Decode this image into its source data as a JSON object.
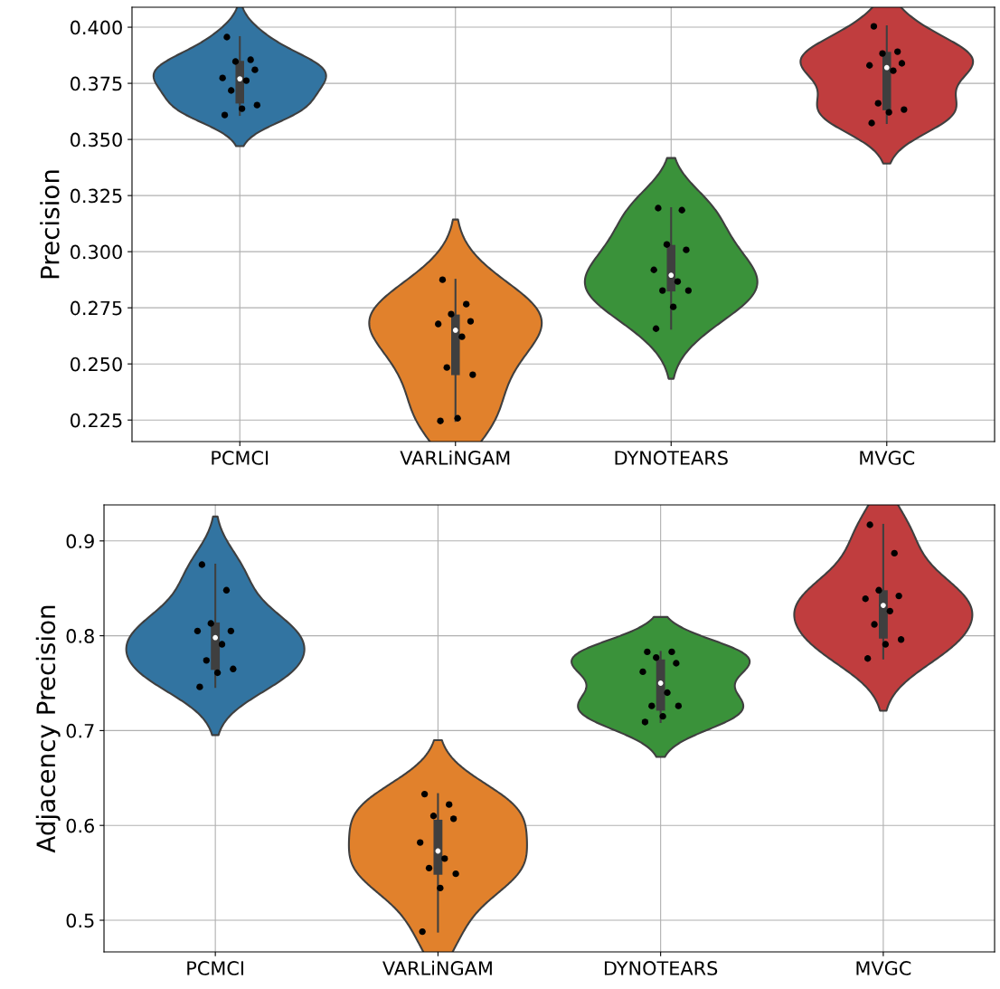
{
  "chart_data": [
    {
      "type": "box",
      "ylabel": "Precision",
      "categories": [
        "PCMCI",
        "VARLiNGAM",
        "DYNOTEARS",
        "MVGC"
      ],
      "colors": [
        "#3274a1",
        "#e1812c",
        "#3a923a",
        "#c03d3e"
      ],
      "ylim": [
        0.2154,
        0.4089
      ],
      "yticks": [
        {
          "value": 0.225,
          "label": "0.225"
        },
        {
          "value": 0.25,
          "label": "0.250"
        },
        {
          "value": 0.275,
          "label": "0.275"
        },
        {
          "value": 0.3,
          "label": "0.300"
        },
        {
          "value": 0.325,
          "label": "0.325"
        },
        {
          "value": 0.35,
          "label": "0.350"
        },
        {
          "value": 0.375,
          "label": "0.375"
        },
        {
          "value": 0.4,
          "label": "0.400"
        }
      ],
      "grid": true,
      "series": [
        {
          "type": "box",
          "color": "#3f3f3f",
          "boxes": [
            {
              "low": 0.3609,
              "q1": 0.366,
              "median": 0.377,
              "q3": 0.385,
              "high": 0.3956
            },
            {
              "low": 0.2246,
              "q1": 0.245,
              "median": 0.265,
              "q3": 0.272,
              "high": 0.2875
            },
            {
              "low": 0.2657,
              "q1": 0.2823,
              "median": 0.2895,
              "q3": 0.303,
              "high": 0.3194
            },
            {
              "low": 0.3573,
              "q1": 0.363,
              "median": 0.382,
              "q3": 0.389,
              "high": 0.4004
            }
          ]
        },
        {
          "type": "scatter",
          "color": "#000000",
          "x": [
            "PCMCI",
            "PCMCI",
            "PCMCI",
            "PCMCI",
            "PCMCI",
            "PCMCI",
            "PCMCI",
            "PCMCI",
            "PCMCI",
            "PCMCI",
            "VARLiNGAM",
            "VARLiNGAM",
            "VARLiNGAM",
            "VARLiNGAM",
            "VARLiNGAM",
            "VARLiNGAM",
            "VARLiNGAM",
            "VARLiNGAM",
            "VARLiNGAM",
            "VARLiNGAM",
            "DYNOTEARS",
            "DYNOTEARS",
            "DYNOTEARS",
            "DYNOTEARS",
            "DYNOTEARS",
            "DYNOTEARS",
            "DYNOTEARS",
            "DYNOTEARS",
            "DYNOTEARS",
            "DYNOTEARS",
            "MVGC",
            "MVGC",
            "MVGC",
            "MVGC",
            "MVGC",
            "MVGC",
            "MVGC",
            "MVGC",
            "MVGC",
            "MVGC"
          ],
          "values": [
            0.3956,
            0.3855,
            0.3847,
            0.381,
            0.3774,
            0.3762,
            0.3718,
            0.3653,
            0.3637,
            0.3609,
            0.2875,
            0.2766,
            0.2722,
            0.269,
            0.2678,
            0.2621,
            0.2484,
            0.2452,
            0.2258,
            0.2246,
            0.3194,
            0.3185,
            0.3032,
            0.3008,
            0.2919,
            0.2867,
            0.2827,
            0.2827,
            0.2754,
            0.2657,
            0.4004,
            0.3891,
            0.3883,
            0.3839,
            0.383,
            0.3806,
            0.3661,
            0.3633,
            0.3621,
            0.3573
          ]
        }
      ]
    },
    {
      "type": "box",
      "ylabel": "Adjacency Precision",
      "categories": [
        "PCMCI",
        "VARLiNGAM",
        "DYNOTEARS",
        "MVGC"
      ],
      "colors": [
        "#3274a1",
        "#e1812c",
        "#3a923a",
        "#c03d3e"
      ],
      "ylim": [
        0.4666,
        0.938
      ],
      "yticks": [
        0.5,
        0.6,
        0.7,
        0.8,
        0.9
      ],
      "grid": true,
      "series": [
        {
          "type": "box",
          "color": "#3f3f3f",
          "boxes": [
            {
              "low": 0.746,
              "q1": 0.764,
              "median": 0.798,
              "q3": 0.814,
              "high": 0.875
            },
            {
              "low": 0.488,
              "q1": 0.548,
              "median": 0.573,
              "q3": 0.606,
              "high": 0.633
            },
            {
              "low": 0.709,
              "q1": 0.721,
              "median": 0.75,
              "q3": 0.775,
              "high": 0.783
            },
            {
              "low": 0.776,
              "q1": 0.797,
              "median": 0.832,
              "q3": 0.848,
              "high": 0.917
            }
          ]
        },
        {
          "type": "scatter",
          "color": "#000000",
          "x": [
            "PCMCI",
            "PCMCI",
            "PCMCI",
            "PCMCI",
            "PCMCI",
            "PCMCI",
            "PCMCI",
            "PCMCI",
            "PCMCI",
            "PCMCI",
            "VARLiNGAM",
            "VARLiNGAM",
            "VARLiNGAM",
            "VARLiNGAM",
            "VARLiNGAM",
            "VARLiNGAM",
            "VARLiNGAM",
            "VARLiNGAM",
            "VARLiNGAM",
            "VARLiNGAM",
            "DYNOTEARS",
            "DYNOTEARS",
            "DYNOTEARS",
            "DYNOTEARS",
            "DYNOTEARS",
            "DYNOTEARS",
            "DYNOTEARS",
            "DYNOTEARS",
            "DYNOTEARS",
            "DYNOTEARS",
            "MVGC",
            "MVGC",
            "MVGC",
            "MVGC",
            "MVGC",
            "MVGC",
            "MVGC",
            "MVGC",
            "MVGC",
            "MVGC"
          ],
          "values": [
            0.875,
            0.848,
            0.813,
            0.805,
            0.805,
            0.791,
            0.774,
            0.765,
            0.761,
            0.746,
            0.633,
            0.622,
            0.61,
            0.607,
            0.582,
            0.565,
            0.555,
            0.549,
            0.534,
            0.488,
            0.783,
            0.783,
            0.777,
            0.771,
            0.762,
            0.74,
            0.726,
            0.726,
            0.715,
            0.709,
            0.917,
            0.887,
            0.848,
            0.842,
            0.839,
            0.826,
            0.812,
            0.796,
            0.791,
            0.776
          ]
        }
      ]
    }
  ]
}
